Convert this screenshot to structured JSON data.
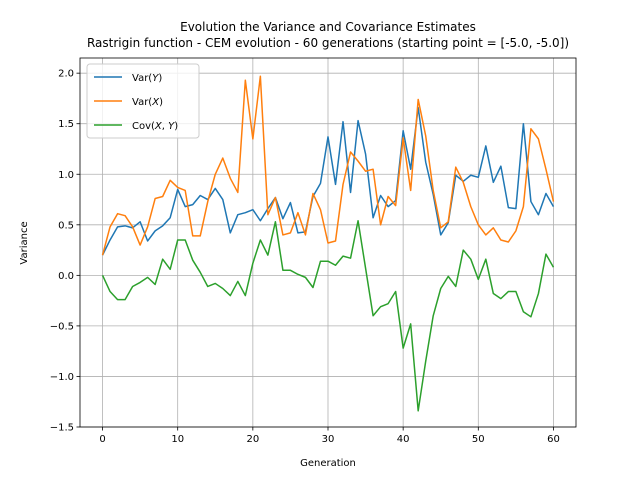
{
  "chart_data": {
    "type": "line",
    "title": "Evolution the Variance and Covariance Estimates",
    "subtitle": "Rastrigin function - CEM evolution - 60 generations (starting point = [-5.0, -5.0])",
    "xlabel": "Generation",
    "ylabel": "Variance",
    "xlim": [
      -3,
      63
    ],
    "ylim": [
      -1.5,
      2.15
    ],
    "xticks": [
      0,
      10,
      20,
      30,
      40,
      50,
      60
    ],
    "yticks": [
      -1.5,
      -1.0,
      -0.5,
      0.0,
      0.5,
      1.0,
      1.5,
      2.0
    ],
    "xtick_labels": [
      "0",
      "10",
      "20",
      "30",
      "40",
      "50",
      "60"
    ],
    "ytick_labels": [
      "−1.5",
      "−1.0",
      "−0.5",
      "0.0",
      "0.5",
      "1.0",
      "1.5",
      "2.0"
    ],
    "grid": true,
    "legend_position": "upper-left",
    "x": [
      0,
      1,
      2,
      3,
      4,
      5,
      6,
      7,
      8,
      9,
      10,
      11,
      12,
      13,
      14,
      15,
      16,
      17,
      18,
      19,
      20,
      21,
      22,
      23,
      24,
      25,
      26,
      27,
      28,
      29,
      30,
      31,
      32,
      33,
      34,
      35,
      36,
      37,
      38,
      39,
      40,
      41,
      42,
      43,
      44,
      45,
      46,
      47,
      48,
      49,
      50,
      51,
      52,
      53,
      54,
      55,
      56,
      57,
      58,
      59,
      60
    ],
    "series": [
      {
        "name": "Var(Y)",
        "color": "#1f77b4",
        "values": [
          0.2,
          0.35,
          0.48,
          0.49,
          0.47,
          0.53,
          0.34,
          0.44,
          0.49,
          0.57,
          0.85,
          0.68,
          0.7,
          0.79,
          0.75,
          0.86,
          0.75,
          0.42,
          0.6,
          0.62,
          0.65,
          0.54,
          0.66,
          0.77,
          0.56,
          0.72,
          0.42,
          0.43,
          0.78,
          0.91,
          1.37,
          0.9,
          1.52,
          0.82,
          1.53,
          1.2,
          0.57,
          0.79,
          0.68,
          0.74,
          1.43,
          1.05,
          1.66,
          1.12,
          0.8,
          0.4,
          0.52,
          0.99,
          0.93,
          0.99,
          0.97,
          1.28,
          0.92,
          1.08,
          0.67,
          0.66,
          1.5,
          0.73,
          0.6,
          0.81,
          0.68
        ]
      },
      {
        "name": "Var(X)",
        "color": "#ff7f0e",
        "values": [
          0.2,
          0.48,
          0.61,
          0.59,
          0.48,
          0.3,
          0.48,
          0.76,
          0.78,
          0.94,
          0.87,
          0.84,
          0.39,
          0.39,
          0.73,
          1.0,
          1.16,
          0.96,
          0.82,
          1.93,
          1.35,
          1.97,
          0.6,
          0.77,
          0.4,
          0.42,
          0.62,
          0.4,
          0.81,
          0.65,
          0.32,
          0.34,
          0.9,
          1.22,
          1.13,
          1.03,
          1.05,
          0.5,
          0.78,
          0.69,
          1.36,
          0.84,
          1.74,
          1.38,
          0.84,
          0.47,
          0.53,
          1.07,
          0.92,
          0.68,
          0.5,
          0.4,
          0.47,
          0.35,
          0.33,
          0.44,
          0.68,
          1.45,
          1.35,
          1.05,
          0.73
        ]
      },
      {
        "name": "Cov(X,Y)",
        "color": "#2ca02c",
        "values": [
          0.0,
          -0.16,
          -0.24,
          -0.24,
          -0.11,
          -0.07,
          -0.02,
          -0.09,
          0.16,
          0.06,
          0.35,
          0.35,
          0.15,
          0.03,
          -0.11,
          -0.08,
          -0.13,
          -0.2,
          -0.06,
          -0.2,
          0.12,
          0.35,
          0.2,
          0.53,
          0.05,
          0.05,
          0.01,
          -0.02,
          -0.12,
          0.14,
          0.14,
          0.1,
          0.19,
          0.17,
          0.54,
          0.07,
          -0.4,
          -0.31,
          -0.28,
          -0.16,
          -0.72,
          -0.48,
          -1.34,
          -0.85,
          -0.4,
          -0.13,
          -0.01,
          -0.11,
          0.25,
          0.16,
          -0.04,
          0.16,
          -0.18,
          -0.23,
          -0.16,
          -0.16,
          -0.36,
          -0.41,
          -0.18,
          0.21,
          0.08
        ]
      }
    ]
  },
  "legend": {
    "entries": [
      {
        "pre": "Var(",
        "var": "Y",
        "post": ")"
      },
      {
        "pre": "Var(",
        "var": "X",
        "post": ")"
      },
      {
        "pre": "Cov(",
        "var": "X",
        "mid": ", ",
        "var2": "Y",
        "post": ")"
      }
    ]
  }
}
